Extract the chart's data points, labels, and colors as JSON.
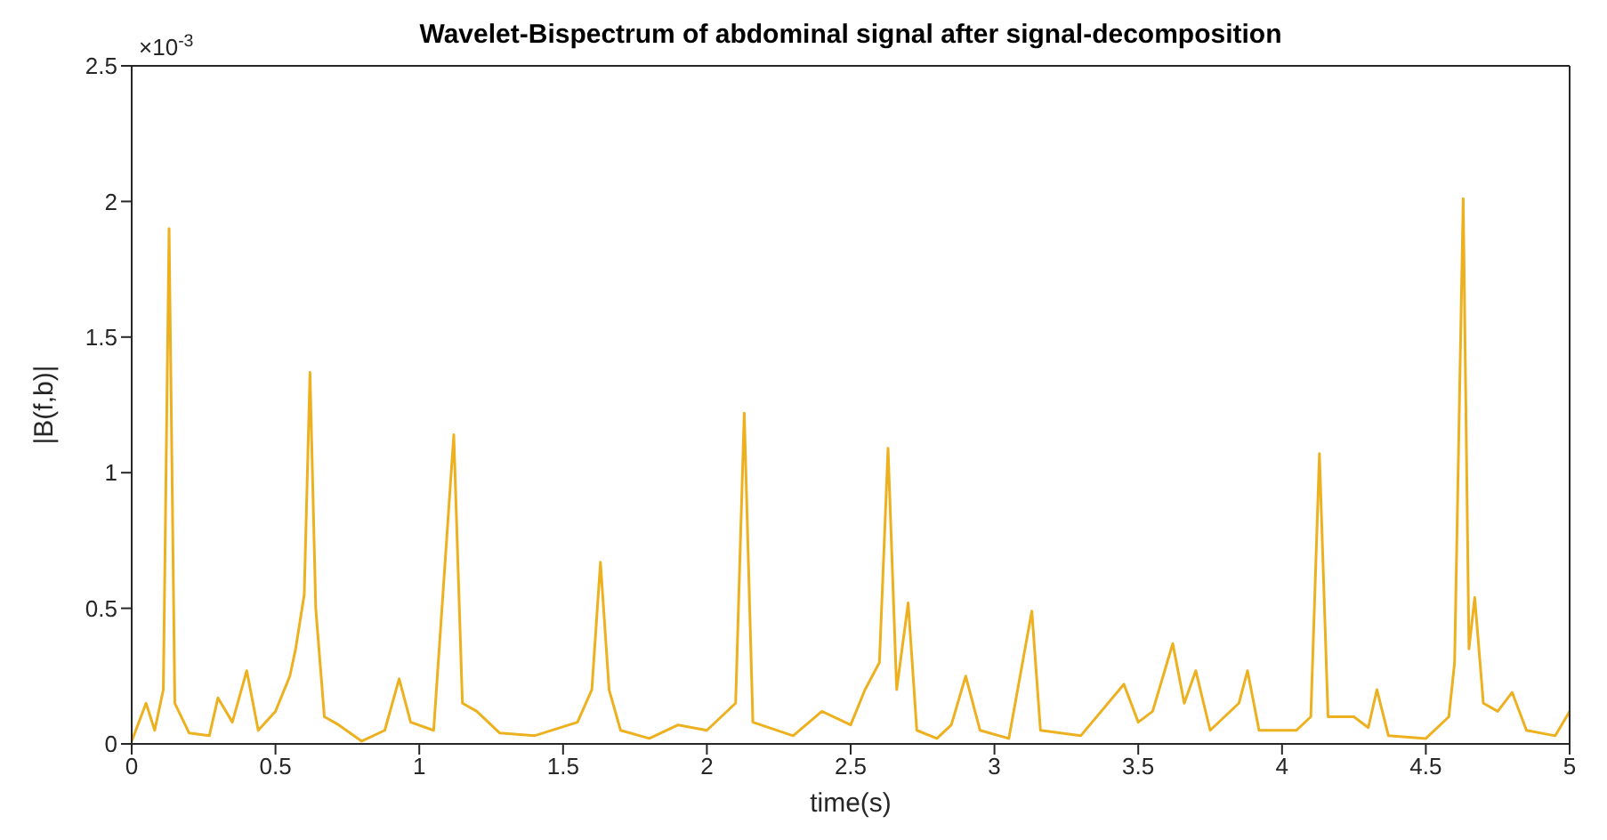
{
  "chart_data": {
    "type": "line",
    "title": "Wavelet-Bispectrum of abdominal signal after signal-decomposition",
    "xlabel": "time(s)",
    "ylabel": "|B(f,b)|",
    "annotations": [
      "×10$^{-3}$"
    ],
    "x": [
      0,
      0.05,
      0.08,
      0.11,
      0.13,
      0.15,
      0.2,
      0.27,
      0.3,
      0.35,
      0.4,
      0.44,
      0.5,
      0.55,
      0.57,
      0.6,
      0.62,
      0.64,
      0.67,
      0.72,
      0.8,
      0.88,
      0.93,
      0.97,
      1.05,
      1.12,
      1.15,
      1.2,
      1.28,
      1.4,
      1.55,
      1.6,
      1.63,
      1.66,
      1.7,
      1.8,
      1.9,
      2.0,
      2.1,
      2.13,
      2.16,
      2.3,
      2.4,
      2.5,
      2.55,
      2.6,
      2.63,
      2.66,
      2.7,
      2.73,
      2.8,
      2.85,
      2.9,
      2.95,
      3.05,
      3.13,
      3.16,
      3.3,
      3.45,
      3.5,
      3.55,
      3.62,
      3.66,
      3.7,
      3.75,
      3.85,
      3.88,
      3.92,
      4.05,
      4.1,
      4.13,
      4.16,
      4.25,
      4.3,
      4.33,
      4.37,
      4.5,
      4.58,
      4.6,
      4.63,
      4.65,
      4.67,
      4.7,
      4.75,
      4.8,
      4.85,
      4.95,
      5
    ],
    "series": [
      {
        "color": "#edb120",
        "values": [
          0.01,
          0.15,
          0.05,
          0.2,
          1.9,
          0.15,
          0.04,
          0.03,
          0.17,
          0.08,
          0.27,
          0.05,
          0.12,
          0.25,
          0.35,
          0.55,
          1.37,
          0.5,
          0.1,
          0.07,
          0.01,
          0.05,
          0.24,
          0.08,
          0.05,
          1.14,
          0.15,
          0.12,
          0.04,
          0.03,
          0.08,
          0.2,
          0.67,
          0.2,
          0.05,
          0.02,
          0.07,
          0.05,
          0.15,
          1.22,
          0.08,
          0.03,
          0.12,
          0.07,
          0.2,
          0.3,
          1.09,
          0.2,
          0.52,
          0.05,
          0.02,
          0.07,
          0.25,
          0.05,
          0.02,
          0.49,
          0.05,
          0.03,
          0.22,
          0.08,
          0.12,
          0.37,
          0.15,
          0.27,
          0.05,
          0.15,
          0.27,
          0.05,
          0.05,
          0.1,
          1.07,
          0.1,
          0.1,
          0.06,
          0.2,
          0.03,
          0.02,
          0.1,
          0.3,
          2.01,
          0.35,
          0.54,
          0.15,
          0.12,
          0.19,
          0.05,
          0.03,
          0.12
        ]
      }
    ],
    "xlim": [
      0,
      5
    ],
    "xticks": [
      0,
      0.5,
      1,
      1.5,
      2,
      2.5,
      3,
      3.5,
      4,
      4.5,
      5
    ],
    "ylim": [
      0,
      2.5
    ],
    "yticks": [
      0,
      0.5,
      1,
      1.5,
      2,
      2.5
    ],
    "grid": false,
    "legend": false,
    "marker": "none",
    "line_style": "solid"
  }
}
